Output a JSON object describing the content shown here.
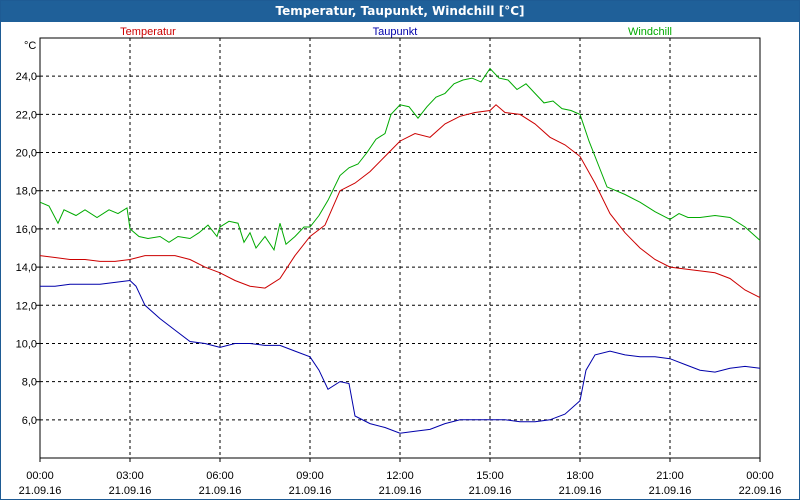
{
  "window": {
    "title": "Temperatur, Taupunkt, Windchill [°C]"
  },
  "chart_data": {
    "type": "line",
    "title": "Temperatur, Taupunkt, Windchill [°C]",
    "ylabel": "°C",
    "ylim": [
      4.0,
      26.0
    ],
    "xlim": [
      0,
      24
    ],
    "grid": true,
    "legend_placement": "top",
    "y_ticks": [
      "24,0",
      "22,0",
      "20,0",
      "18,0",
      "16,0",
      "14,0",
      "12,0",
      "10,0",
      "8,0",
      "6,0"
    ],
    "x_ticks": [
      {
        "time": "00:00",
        "date": "21.09.16"
      },
      {
        "time": "03:00",
        "date": "21.09.16"
      },
      {
        "time": "06:00",
        "date": "21.09.16"
      },
      {
        "time": "09:00",
        "date": "21.09.16"
      },
      {
        "time": "12:00",
        "date": "21.09.16"
      },
      {
        "time": "15:00",
        "date": "21.09.16"
      },
      {
        "time": "18:00",
        "date": "21.09.16"
      },
      {
        "time": "21:00",
        "date": "21.09.16"
      },
      {
        "time": "00:00",
        "date": "22.09.16"
      }
    ],
    "series": [
      {
        "name": "Temperatur",
        "color": "#cc0000",
        "points": [
          [
            0,
            14.6
          ],
          [
            0.5,
            14.5
          ],
          [
            1,
            14.4
          ],
          [
            1.5,
            14.4
          ],
          [
            2,
            14.3
          ],
          [
            2.5,
            14.3
          ],
          [
            3,
            14.4
          ],
          [
            3.5,
            14.6
          ],
          [
            4,
            14.6
          ],
          [
            4.5,
            14.6
          ],
          [
            5,
            14.4
          ],
          [
            5.5,
            14.0
          ],
          [
            6,
            13.7
          ],
          [
            6.5,
            13.3
          ],
          [
            7,
            13.0
          ],
          [
            7.5,
            12.9
          ],
          [
            8,
            13.4
          ],
          [
            8.5,
            14.6
          ],
          [
            9,
            15.6
          ],
          [
            9.5,
            16.2
          ],
          [
            10,
            18.0
          ],
          [
            10.5,
            18.4
          ],
          [
            11,
            19.0
          ],
          [
            11.5,
            19.8
          ],
          [
            12,
            20.6
          ],
          [
            12.5,
            21.0
          ],
          [
            13,
            20.8
          ],
          [
            13.5,
            21.5
          ],
          [
            14,
            21.9
          ],
          [
            14.5,
            22.1
          ],
          [
            15,
            22.2
          ],
          [
            15.2,
            22.5
          ],
          [
            15.5,
            22.1
          ],
          [
            16,
            22.0
          ],
          [
            16.5,
            21.5
          ],
          [
            17,
            20.8
          ],
          [
            17.5,
            20.4
          ],
          [
            18,
            19.8
          ],
          [
            18.5,
            18.4
          ],
          [
            19,
            16.8
          ],
          [
            19.5,
            15.8
          ],
          [
            20,
            15.0
          ],
          [
            20.5,
            14.4
          ],
          [
            21,
            14.0
          ],
          [
            21.5,
            13.9
          ],
          [
            22,
            13.8
          ],
          [
            22.5,
            13.7
          ],
          [
            23,
            13.4
          ],
          [
            23.5,
            12.8
          ],
          [
            24,
            12.4
          ]
        ]
      },
      {
        "name": "Taupunkt",
        "color": "#0000aa",
        "points": [
          [
            0,
            13.0
          ],
          [
            0.5,
            13.0
          ],
          [
            1,
            13.1
          ],
          [
            1.5,
            13.1
          ],
          [
            2,
            13.1
          ],
          [
            2.5,
            13.2
          ],
          [
            3,
            13.3
          ],
          [
            3.2,
            13.0
          ],
          [
            3.5,
            12.0
          ],
          [
            4,
            11.3
          ],
          [
            4.5,
            10.7
          ],
          [
            5,
            10.1
          ],
          [
            5.5,
            10.0
          ],
          [
            6,
            9.8
          ],
          [
            6.5,
            10.0
          ],
          [
            7,
            10.0
          ],
          [
            7.5,
            9.9
          ],
          [
            8,
            9.9
          ],
          [
            8.5,
            9.6
          ],
          [
            9,
            9.3
          ],
          [
            9.3,
            8.6
          ],
          [
            9.6,
            7.6
          ],
          [
            10,
            8.0
          ],
          [
            10.3,
            7.9
          ],
          [
            10.5,
            6.2
          ],
          [
            11,
            5.8
          ],
          [
            11.5,
            5.6
          ],
          [
            12,
            5.3
          ],
          [
            12.5,
            5.4
          ],
          [
            13,
            5.5
          ],
          [
            13.5,
            5.8
          ],
          [
            14,
            6.0
          ],
          [
            14.5,
            6.0
          ],
          [
            15,
            6.0
          ],
          [
            15.5,
            6.0
          ],
          [
            16,
            5.9
          ],
          [
            16.5,
            5.9
          ],
          [
            17,
            6.0
          ],
          [
            17.5,
            6.3
          ],
          [
            18,
            7.0
          ],
          [
            18.2,
            8.6
          ],
          [
            18.5,
            9.4
          ],
          [
            19,
            9.6
          ],
          [
            19.5,
            9.4
          ],
          [
            20,
            9.3
          ],
          [
            20.5,
            9.3
          ],
          [
            21,
            9.2
          ],
          [
            21.5,
            8.9
          ],
          [
            22,
            8.6
          ],
          [
            22.5,
            8.5
          ],
          [
            23,
            8.7
          ],
          [
            23.5,
            8.8
          ],
          [
            24,
            8.7
          ]
        ]
      },
      {
        "name": "Windchill",
        "color": "#00aa00",
        "points": [
          [
            0,
            17.4
          ],
          [
            0.3,
            17.2
          ],
          [
            0.6,
            16.3
          ],
          [
            0.8,
            17.0
          ],
          [
            1.2,
            16.7
          ],
          [
            1.5,
            17.0
          ],
          [
            1.9,
            16.6
          ],
          [
            2.3,
            17.0
          ],
          [
            2.6,
            16.8
          ],
          [
            2.9,
            17.1
          ],
          [
            3,
            16.0
          ],
          [
            3.3,
            15.6
          ],
          [
            3.6,
            15.5
          ],
          [
            4,
            15.6
          ],
          [
            4.3,
            15.3
          ],
          [
            4.6,
            15.6
          ],
          [
            5,
            15.5
          ],
          [
            5.3,
            15.8
          ],
          [
            5.6,
            16.2
          ],
          [
            5.9,
            15.6
          ],
          [
            6,
            16.1
          ],
          [
            6.3,
            16.4
          ],
          [
            6.6,
            16.3
          ],
          [
            6.8,
            15.3
          ],
          [
            7,
            15.8
          ],
          [
            7.2,
            15.0
          ],
          [
            7.5,
            15.6
          ],
          [
            7.8,
            14.9
          ],
          [
            8,
            16.3
          ],
          [
            8.2,
            15.2
          ],
          [
            8.5,
            15.6
          ],
          [
            8.8,
            16.1
          ],
          [
            9,
            16.1
          ],
          [
            9.3,
            16.7
          ],
          [
            9.6,
            17.5
          ],
          [
            10,
            18.8
          ],
          [
            10.3,
            19.2
          ],
          [
            10.6,
            19.4
          ],
          [
            10.9,
            20.0
          ],
          [
            11.2,
            20.7
          ],
          [
            11.5,
            21.0
          ],
          [
            11.7,
            22.0
          ],
          [
            12,
            22.5
          ],
          [
            12.3,
            22.4
          ],
          [
            12.6,
            21.8
          ],
          [
            12.9,
            22.4
          ],
          [
            13.2,
            22.9
          ],
          [
            13.5,
            23.1
          ],
          [
            13.8,
            23.6
          ],
          [
            14.1,
            23.8
          ],
          [
            14.4,
            23.9
          ],
          [
            14.7,
            23.7
          ],
          [
            15,
            24.4
          ],
          [
            15.3,
            23.9
          ],
          [
            15.6,
            23.8
          ],
          [
            15.9,
            23.3
          ],
          [
            16.2,
            23.6
          ],
          [
            16.5,
            23.1
          ],
          [
            16.8,
            22.6
          ],
          [
            17.1,
            22.7
          ],
          [
            17.4,
            22.3
          ],
          [
            17.7,
            22.2
          ],
          [
            18,
            22.0
          ],
          [
            18.3,
            20.6
          ],
          [
            18.6,
            19.4
          ],
          [
            18.9,
            18.2
          ],
          [
            19.2,
            18.0
          ],
          [
            19.5,
            17.8
          ],
          [
            20,
            17.4
          ],
          [
            20.5,
            16.9
          ],
          [
            21,
            16.5
          ],
          [
            21.3,
            16.8
          ],
          [
            21.6,
            16.6
          ],
          [
            22,
            16.6
          ],
          [
            22.5,
            16.7
          ],
          [
            23,
            16.6
          ],
          [
            23.5,
            16.1
          ],
          [
            24,
            15.4
          ]
        ]
      }
    ]
  }
}
